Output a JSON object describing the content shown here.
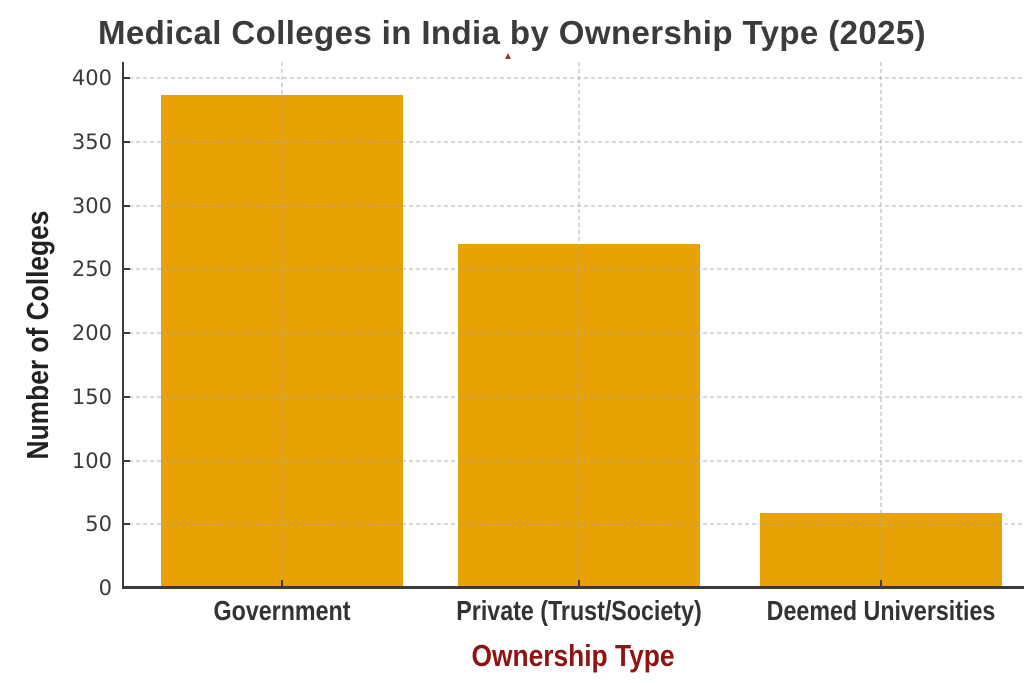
{
  "page": {
    "background_color": "#ffffff"
  },
  "chart_data": {
    "type": "bar",
    "title": "Medical Colleges in India by Ownership Type (2025)",
    "xlabel": "Ownership Type",
    "ylabel": "Number of Colleges",
    "categories": [
      "Government",
      "Private (Trust/Society)",
      "Deemed Universities"
    ],
    "values": [
      387,
      270,
      59
    ],
    "ylim": [
      0,
      400
    ],
    "yticks": [
      0,
      50,
      100,
      150,
      200,
      250,
      300,
      350,
      400
    ],
    "grid": "dashed light-gray, horizontal at every 50 and vertical at each category center, drawn over bars",
    "legend": "none",
    "bar_color": "#e8a203",
    "axis_color": "#3a3a3a",
    "title_color": "#3b3b3b",
    "xlabel_color": "#8e1414",
    "ylabel_color": "#222222",
    "tick_label_color": "#3a3a3a"
  }
}
